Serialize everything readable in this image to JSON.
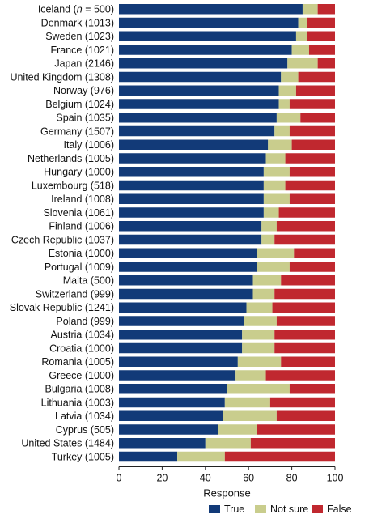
{
  "chart_data": {
    "type": "bar",
    "stacked": true,
    "orientation": "horizontal",
    "title": "",
    "xlabel": "Response",
    "ylabel": "",
    "xlim": [
      0,
      100
    ],
    "xticks": [
      "0",
      "20",
      "40",
      "60",
      "80",
      "100"
    ],
    "grid": false,
    "legend_position": "bottom-right",
    "categories": [
      [
        "Iceland (",
        "n",
        " = 500)"
      ],
      "Denmark (1013)",
      "Sweden (1023)",
      "France (1021)",
      "Japan (2146)",
      "United Kingdom (1308)",
      "Norway (976)",
      "Belgium (1024)",
      "Spain (1035)",
      "Germany (1507)",
      "Italy (1006)",
      "Netherlands (1005)",
      "Hungary (1000)",
      "Luxembourg (518)",
      "Ireland (1008)",
      "Slovenia (1061)",
      "Finland (1006)",
      "Czech Republic (1037)",
      "Estonia (1000)",
      "Portugal (1009)",
      "Malta (500)",
      "Switzerland (999)",
      "Slovak Republic (1241)",
      "Poland (999)",
      "Austria (1034)",
      "Croatia (1000)",
      "Romania (1005)",
      "Greece (1000)",
      "Bulgaria (1008)",
      "Lithuania (1003)",
      "Latvia (1034)",
      "Cyprus (505)",
      "United States (1484)",
      "Turkey (1005)"
    ],
    "series": [
      {
        "name": "True",
        "color": "#123a78",
        "values": [
          85,
          83,
          82,
          80,
          78,
          75,
          74,
          74,
          73,
          72,
          69,
          68,
          67,
          67,
          67,
          67,
          66,
          66,
          64,
          64,
          62,
          62,
          59,
          58,
          57,
          57,
          55,
          54,
          50,
          49,
          48,
          46,
          40,
          27
        ]
      },
      {
        "name": "Not sure",
        "color": "#c9cd8d",
        "values": [
          7,
          4,
          5,
          8,
          14,
          8,
          8,
          5,
          11,
          7,
          11,
          9,
          12,
          10,
          12,
          7,
          7,
          6,
          17,
          15,
          13,
          10,
          12,
          15,
          15,
          15,
          20,
          14,
          29,
          21,
          25,
          18,
          21,
          22
        ]
      },
      {
        "name": "False",
        "color": "#c0282f",
        "values": [
          8,
          13,
          13,
          12,
          8,
          17,
          18,
          21,
          16,
          21,
          20,
          23,
          21,
          23,
          21,
          26,
          27,
          28,
          19,
          21,
          25,
          28,
          29,
          27,
          28,
          28,
          25,
          32,
          21,
          30,
          27,
          36,
          39,
          51
        ]
      }
    ]
  }
}
